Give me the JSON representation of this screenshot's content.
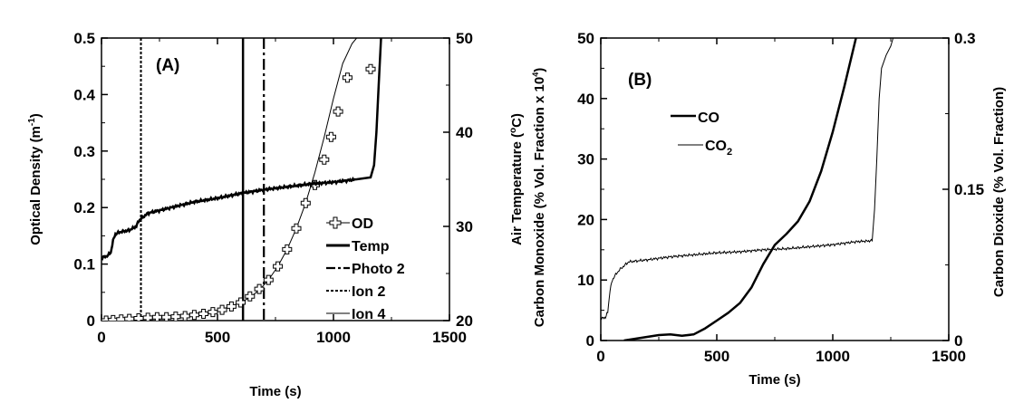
{
  "chart_data": [
    {
      "type": "line",
      "panel_label": "(A)",
      "xlabel": "Time (s)",
      "ylabel_left_parts": [
        "Optical Density (m",
        "-1",
        ")"
      ],
      "ylabel_right_parts": [
        "Air Temperature (",
        "o",
        "C)"
      ],
      "xlim": [
        0,
        1500
      ],
      "ylim_left": [
        0,
        0.5
      ],
      "ylim_right": [
        20,
        50
      ],
      "x_ticks": [
        0,
        500,
        1000,
        1500
      ],
      "y_ticks_left": [
        0,
        0.1,
        0.2,
        0.3,
        0.4,
        0.5
      ],
      "y_tick_labels_left": [
        "0",
        "0.1",
        "0.2",
        "0.3",
        "0.4",
        "0.5"
      ],
      "y_ticks_right": [
        20,
        30,
        40,
        50
      ],
      "legend": {
        "placement": "lower-right",
        "entries": [
          {
            "label": "OD",
            "style": "line-cross-marker"
          },
          {
            "label": "Temp",
            "style": "thick-solid"
          },
          {
            "label": "Photo 2",
            "style": "dash-dot"
          },
          {
            "label": "Ion 2",
            "style": "dotted"
          },
          {
            "label": "Ion 4",
            "style": "thin-solid"
          }
        ]
      },
      "series": [
        {
          "name": "OD",
          "axis": "left",
          "x": [
            0,
            40,
            80,
            120,
            160,
            200,
            250,
            300,
            350,
            400,
            450,
            500,
            550,
            600,
            640,
            680,
            720,
            760,
            800,
            840,
            880,
            920,
            960,
            1000,
            1040,
            1080,
            1100
          ],
          "y": [
            0.0,
            0.001,
            0.002,
            0.003,
            0.004,
            0.005,
            0.006,
            0.007,
            0.009,
            0.011,
            0.014,
            0.018,
            0.024,
            0.032,
            0.041,
            0.054,
            0.072,
            0.096,
            0.126,
            0.163,
            0.208,
            0.262,
            0.325,
            0.393,
            0.455,
            0.49,
            0.5
          ]
        },
        {
          "name": "OD markers",
          "axis": "left",
          "x": [
            20,
            50,
            85,
            120,
            160,
            200,
            240,
            280,
            320,
            360,
            400,
            440,
            480,
            520,
            560,
            600,
            640,
            680,
            720,
            760,
            800,
            840,
            880,
            920,
            960,
            990,
            1020,
            1060,
            1160
          ],
          "y": [
            0.0,
            0.001,
            0.002,
            0.003,
            0.004,
            0.005,
            0.006,
            0.006,
            0.007,
            0.008,
            0.01,
            0.012,
            0.015,
            0.019,
            0.025,
            0.032,
            0.043,
            0.056,
            0.072,
            0.096,
            0.126,
            0.163,
            0.208,
            0.24,
            0.285,
            0.325,
            0.37,
            0.43,
            0.445
          ]
        },
        {
          "name": "Temp",
          "axis": "right",
          "x": [
            0,
            20,
            40,
            50,
            60,
            80,
            120,
            150,
            160,
            180,
            200,
            300,
            400,
            500,
            600,
            700,
            800,
            900,
            1000,
            1100,
            1160,
            1175,
            1185,
            1195,
            1205
          ],
          "y": [
            26.7,
            26.8,
            27.2,
            28.5,
            29.2,
            29.4,
            29.6,
            30.0,
            30.6,
            31.0,
            31.4,
            32.0,
            32.6,
            33.0,
            33.5,
            33.9,
            34.2,
            34.5,
            34.7,
            35.0,
            35.2,
            36.5,
            40.0,
            45.0,
            50.0
          ]
        }
      ],
      "event_lines": [
        {
          "name": "Ion 2",
          "x": 170,
          "style": "dotted"
        },
        {
          "name": "Ion 4",
          "x": 610,
          "style": "thin-solid"
        },
        {
          "name": "Photo 2",
          "x": 700,
          "style": "dash-dot"
        }
      ]
    },
    {
      "type": "line",
      "panel_label": "(B)",
      "xlabel": "Time (s)",
      "ylabel_left": "Carbon Monoxide (% Vol. Fraction x 10",
      "ylabel_left_sup": "4",
      "ylabel_left_suffix": ")",
      "ylabel_right": "Carbon Dioxide (% Vol. Fraction)",
      "xlim": [
        0,
        1500
      ],
      "ylim_left": [
        0,
        50
      ],
      "ylim_right": [
        0,
        0.3
      ],
      "x_ticks": [
        0,
        500,
        1000,
        1500
      ],
      "y_ticks_left": [
        0,
        10,
        20,
        30,
        40,
        50
      ],
      "y_ticks_right": [
        0,
        0.15,
        0.3
      ],
      "y_tick_labels_right": [
        "0",
        "0.15",
        "0.3"
      ],
      "legend": {
        "placement": "upper-left",
        "entries": [
          {
            "label": "CO",
            "style": "thick-solid"
          },
          {
            "label": "CO",
            "sub": "2",
            "style": "thin-solid"
          }
        ]
      },
      "series": [
        {
          "name": "CO",
          "axis": "left",
          "x": [
            100,
            150,
            200,
            250,
            300,
            350,
            400,
            450,
            500,
            550,
            600,
            650,
            700,
            750,
            800,
            850,
            900,
            950,
            1000,
            1050,
            1100
          ],
          "y": [
            0.0,
            0.3,
            0.6,
            0.9,
            1.0,
            0.8,
            1.0,
            2.0,
            3.3,
            4.6,
            6.2,
            8.8,
            12.6,
            15.8,
            17.6,
            19.7,
            23.0,
            28.0,
            34.5,
            42.0,
            50.0
          ]
        },
        {
          "name": "CO2",
          "axis": "right",
          "x": [
            0,
            10,
            20,
            30,
            40,
            50,
            60,
            80,
            120,
            200,
            300,
            400,
            500,
            600,
            700,
            800,
            900,
            1000,
            1100,
            1170,
            1180,
            1190,
            1200,
            1210,
            1230,
            1250,
            1260
          ],
          "y": [
            0.023,
            0.022,
            0.023,
            0.028,
            0.05,
            0.06,
            0.064,
            0.07,
            0.078,
            0.08,
            0.083,
            0.085,
            0.087,
            0.088,
            0.09,
            0.091,
            0.093,
            0.095,
            0.098,
            0.099,
            0.13,
            0.18,
            0.24,
            0.27,
            0.283,
            0.292,
            0.3
          ]
        }
      ]
    }
  ]
}
